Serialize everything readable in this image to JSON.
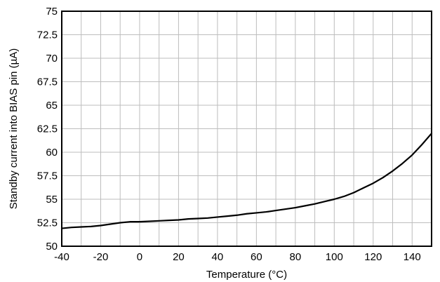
{
  "chart_data": {
    "type": "line",
    "title": "",
    "xlabel": "Temperature (°C)",
    "ylabel": "Standby current into BIAS pin (µA)",
    "xlim": [
      -40,
      150
    ],
    "ylim": [
      50,
      75
    ],
    "x_ticks": [
      "-40",
      "-20",
      "0",
      "20",
      "40",
      "60",
      "80",
      "100",
      "120",
      "140"
    ],
    "y_ticks": [
      "50",
      "52.5",
      "55",
      "57.5",
      "60",
      "62.5",
      "65",
      "67.5",
      "70",
      "72.5",
      "75"
    ],
    "x_tick_values": [
      -40,
      -20,
      0,
      20,
      40,
      60,
      80,
      100,
      120,
      140
    ],
    "y_tick_values": [
      50,
      52.5,
      55,
      57.5,
      60,
      62.5,
      65,
      67.5,
      70,
      72.5,
      75
    ],
    "grid": true,
    "series": [
      {
        "color": "#000000",
        "x": [
          -40,
          -35,
          -30,
          -25,
          -20,
          -15,
          -10,
          -5,
          0,
          5,
          10,
          15,
          20,
          25,
          30,
          35,
          40,
          45,
          50,
          55,
          60,
          65,
          70,
          75,
          80,
          85,
          90,
          95,
          100,
          105,
          110,
          115,
          120,
          125,
          130,
          135,
          140,
          145,
          150
        ],
        "y": [
          51.9,
          52.0,
          52.05,
          52.1,
          52.2,
          52.35,
          52.5,
          52.6,
          52.6,
          52.65,
          52.7,
          52.75,
          52.8,
          52.9,
          52.95,
          53.0,
          53.1,
          53.2,
          53.3,
          53.45,
          53.55,
          53.65,
          53.8,
          53.95,
          54.1,
          54.3,
          54.5,
          54.75,
          55.0,
          55.3,
          55.7,
          56.2,
          56.7,
          57.3,
          58.0,
          58.8,
          59.7,
          60.8,
          62.0
        ]
      }
    ]
  }
}
